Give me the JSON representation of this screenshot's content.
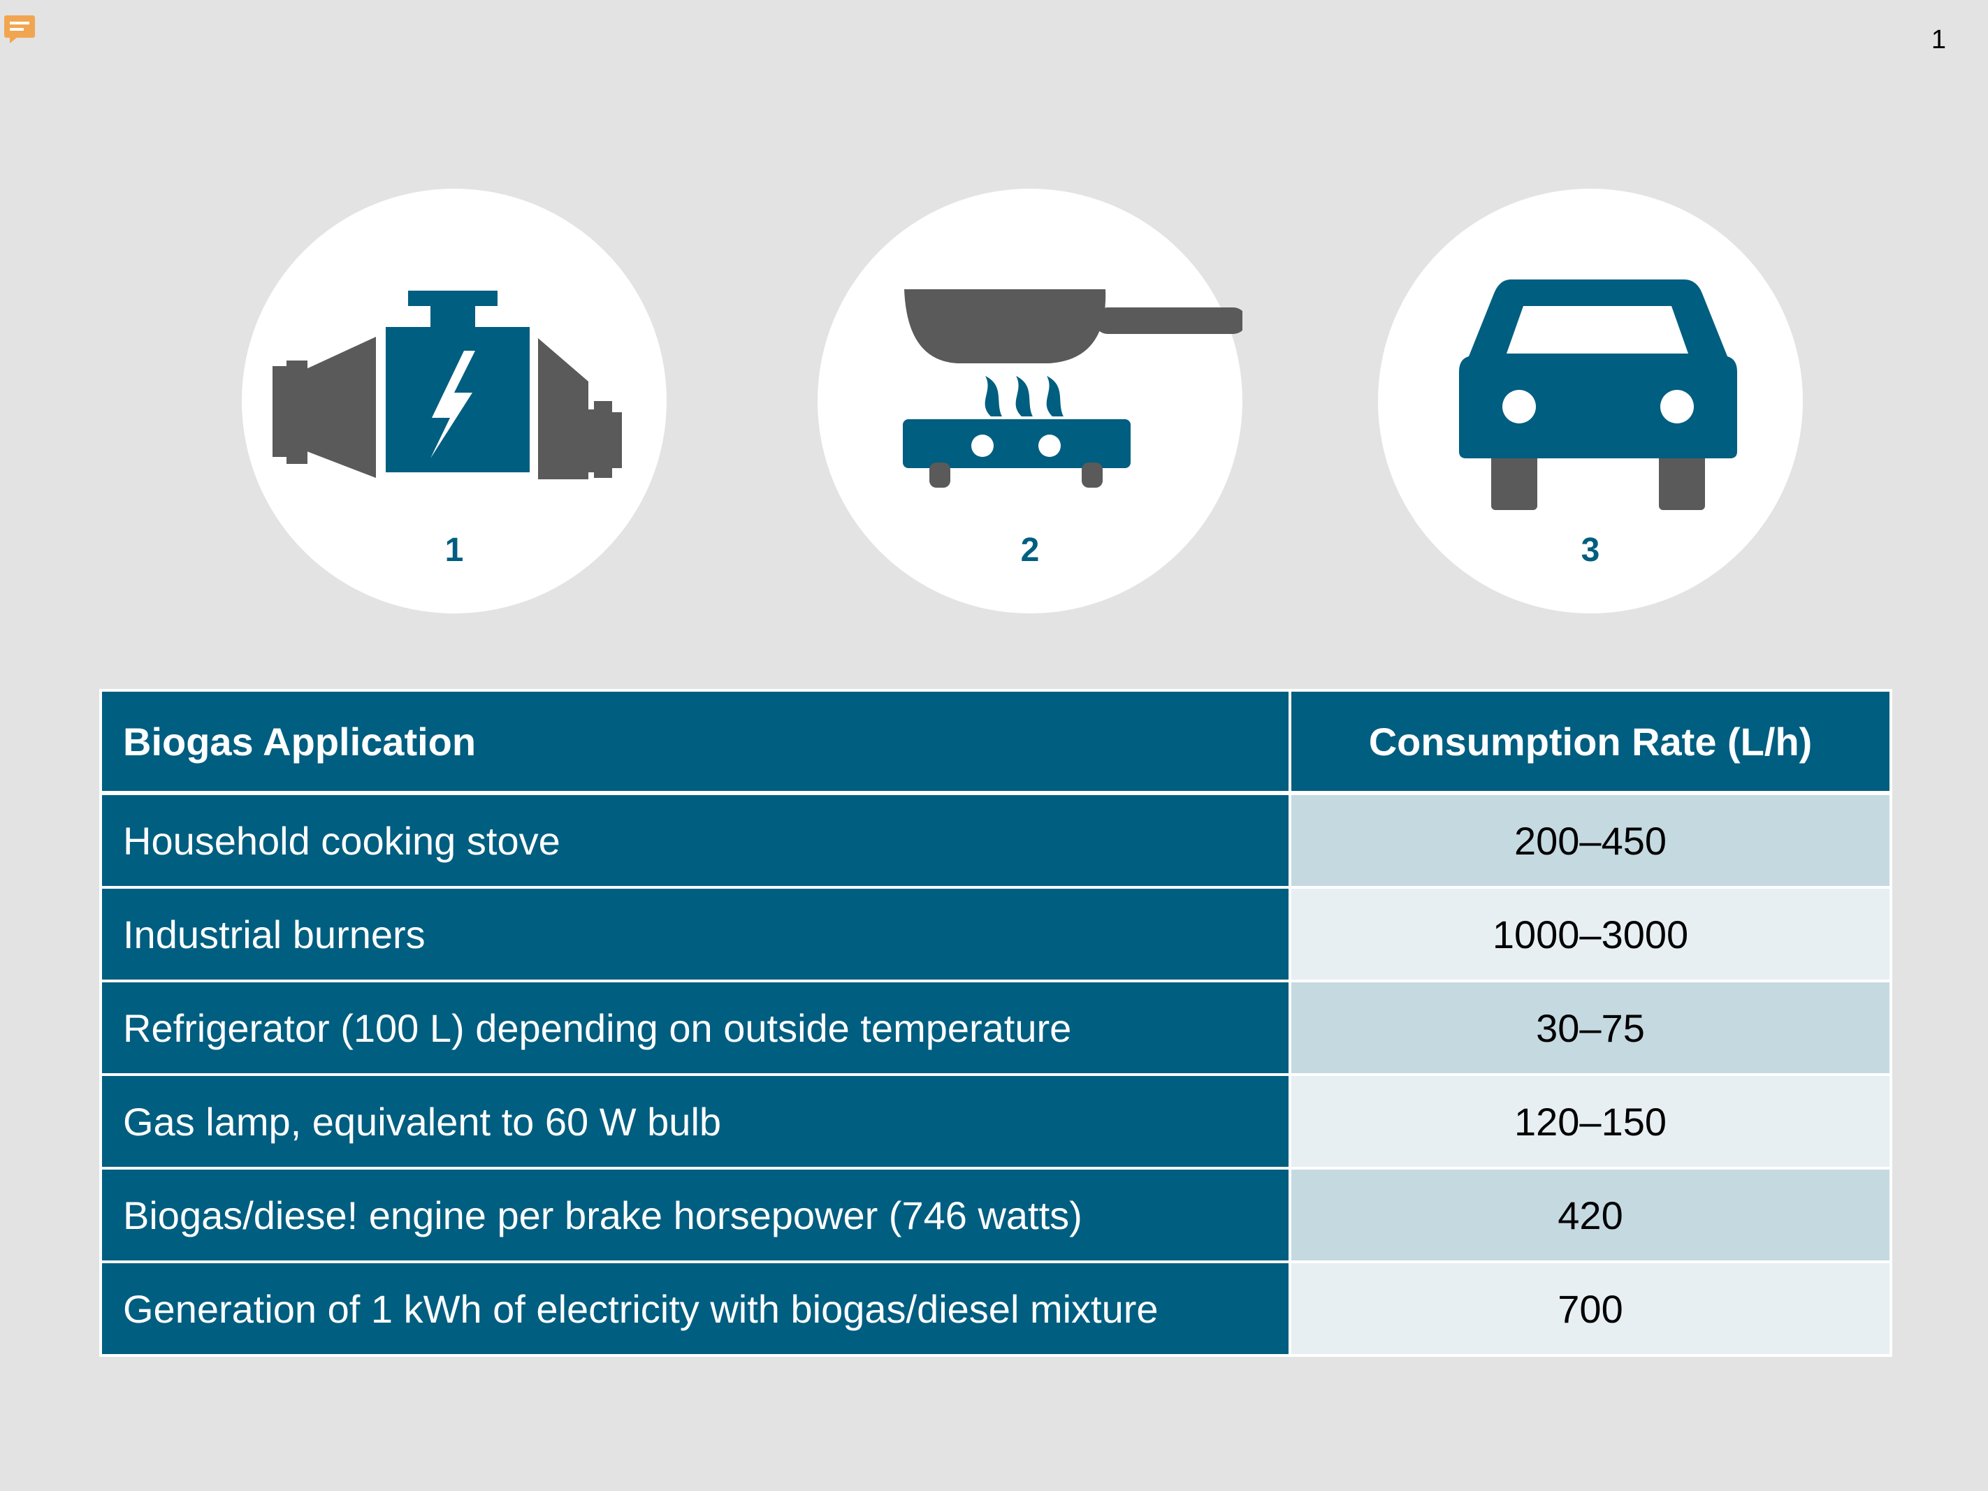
{
  "page_number": "1",
  "icons": [
    {
      "name": "engine-icon",
      "number": "1"
    },
    {
      "name": "stove-pan-icon",
      "number": "2"
    },
    {
      "name": "car-icon",
      "number": "3"
    }
  ],
  "colors": {
    "accent": "#005e80",
    "gray": "#5a5a5a",
    "row_light": "#c5d9e1",
    "row_lighter": "#e7eff2"
  },
  "table": {
    "headers": [
      "Biogas Application",
      "Consumption Rate (L/h)"
    ],
    "rows": [
      {
        "application": "Household cooking stove",
        "rate": "200–450"
      },
      {
        "application": "Industrial burners",
        "rate": "1000–3000"
      },
      {
        "application": "Refrigerator (100 L) depending on outside temperature",
        "rate": "30–75"
      },
      {
        "application": "Gas lamp, equivalent to 60 W bulb",
        "rate": "120–150"
      },
      {
        "application": "Biogas/diese! engine per brake horsepower (746 watts)",
        "rate": "420"
      },
      {
        "application": "Generation of 1 kWh of electricity with biogas/diesel mixture",
        "rate": "700"
      }
    ]
  }
}
